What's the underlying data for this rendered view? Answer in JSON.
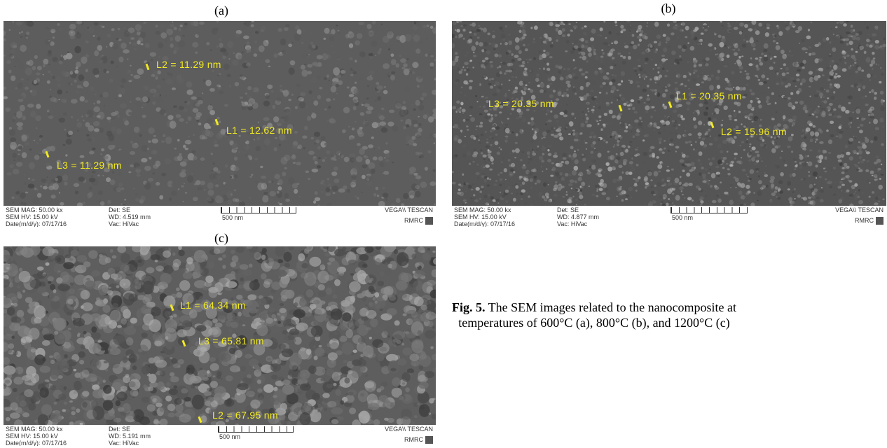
{
  "panels": [
    {
      "label": "(a)",
      "measurements": [
        "L2 = 11.29 nm",
        "L1 = 12.62 nm",
        "L3 = 11.29 nm"
      ],
      "info": {
        "line1": "SEM MAG: 50.00 kx",
        "line2": "SEM HV: 15.00 kV",
        "line3": "Date(m/d/y): 07/17/16",
        "det": "Det: SE",
        "wd": "WD: 4.519 mm",
        "vac": "Vac: HiVac",
        "scale": "500 nm",
        "vendor": "VEGA\\\\ TESCAN",
        "lab": "RMRC"
      }
    },
    {
      "label": "(b)",
      "measurements": [
        "L3 = 20.35 nm",
        "L1 = 20.35 nm",
        "L2 = 15.96 nm"
      ],
      "info": {
        "line1": "SEM MAG: 50.00 kx",
        "line2": "SEM HV: 15.00 kV",
        "line3": "Date(m/d/y): 07/17/16",
        "det": "Det: SE",
        "wd": "WD: 4.877 mm",
        "vac": "Vac: HiVac",
        "scale": "500 nm",
        "vendor": "VEGA\\\\ TESCAN",
        "lab": "RMRC"
      }
    },
    {
      "label": "(c)",
      "measurements": [
        "L1 = 64.34 nm",
        "L3 = 65.81 nm",
        "L2 = 67.95 nm"
      ],
      "info": {
        "line1": "SEM MAG: 50.00 kx",
        "line2": "SEM HV: 15.00 kV",
        "line3": "Date(m/d/y): 07/17/16",
        "det": "Det: SE",
        "wd": "WD: 5.191 mm",
        "vac": "Vac: HiVac",
        "scale": "500 nm",
        "vendor": "VEGA\\\\ TESCAN",
        "lab": "RMRC"
      }
    }
  ],
  "caption": {
    "bold": "Fig. 5.",
    "text": " The SEM images related to the nanocomposite at temperatures of 600°C (a), 800°C (b), and 1200°C (c)"
  }
}
